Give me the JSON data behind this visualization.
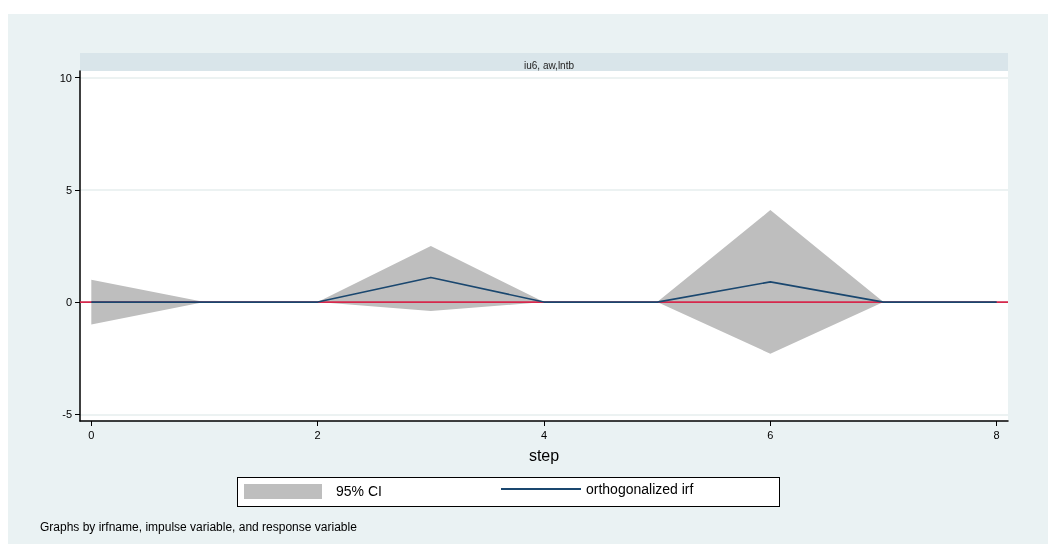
{
  "chart_data": {
    "type": "line",
    "title": "iu6, aw,lntb",
    "xlabel": "step",
    "x": [
      0,
      1,
      2,
      3,
      4,
      5,
      6,
      7,
      8
    ],
    "series": [
      {
        "name": "orthogonalized irf",
        "color": "#1a476f",
        "values": [
          0,
          0,
          0,
          1.1,
          0,
          0,
          0.9,
          0,
          0
        ],
        "lower": [
          -1,
          0,
          0,
          -0.4,
          0,
          0,
          -2.3,
          0,
          0
        ],
        "upper": [
          1,
          0,
          0,
          2.5,
          0,
          0,
          4.1,
          0,
          0
        ]
      }
    ],
    "xlim": [
      -0.1,
      8.1
    ],
    "xticks": [
      0,
      2,
      4,
      6,
      8
    ],
    "ylim": [
      -5.3,
      10.3
    ],
    "yticks": [
      -5,
      0,
      5,
      10
    ],
    "ref_lines": [
      {
        "axis": "y",
        "value": 0,
        "color": "#d6284c"
      }
    ],
    "grid": "y",
    "legend": "bottom",
    "marker": "none",
    "line_style": "solid",
    "annotations": [
      "95% CI",
      "Graphs by irfname, impulse variable, and response variable"
    ]
  }
}
